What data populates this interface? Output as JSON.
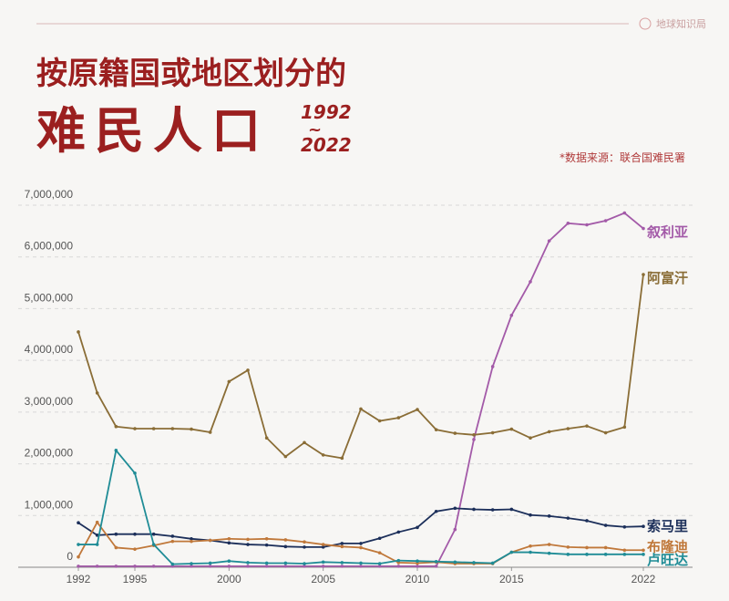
{
  "brand": "地球知识局",
  "chart_data": {
    "type": "line",
    "title_line1": "按原籍国或地区划分的",
    "title_line2": "难民人口",
    "title_year_start": "1992",
    "title_year_sep": "~",
    "title_year_end": "2022",
    "source": "*数据来源：联合国难民署",
    "x": [
      1992,
      1993,
      1994,
      1995,
      1996,
      1997,
      1998,
      1999,
      2000,
      2001,
      2002,
      2003,
      2004,
      2005,
      2006,
      2007,
      2008,
      2009,
      2010,
      2011,
      2012,
      2013,
      2014,
      2015,
      2016,
      2017,
      2018,
      2019,
      2020,
      2021,
      2022
    ],
    "xlim": [
      1992,
      2022
    ],
    "xticks": [
      1992,
      1995,
      2000,
      2005,
      2010,
      2015,
      2022
    ],
    "ylim": [
      0,
      7000000
    ],
    "yticks": [
      0,
      {
        "value": 1000000,
        "label": "1,000,000"
      },
      {
        "value": 2000000,
        "label": "2,000,000"
      },
      {
        "value": 3000000,
        "label": "3,000,000"
      },
      {
        "value": 4000000,
        "label": "4,000,000"
      },
      {
        "value": 5000000,
        "label": "5,000,000"
      },
      {
        "value": 6000000,
        "label": "6,000,000"
      },
      {
        "value": 7000000,
        "label": "7,000,000"
      }
    ],
    "grid": true,
    "series": [
      {
        "name": "叙利亚",
        "color": "#a35aa8",
        "values": [
          20000,
          20000,
          20000,
          20000,
          20000,
          20000,
          20000,
          20000,
          20000,
          20000,
          20000,
          20000,
          20000,
          20000,
          20000,
          20000,
          20000,
          20000,
          20000,
          20000,
          730000,
          2470000,
          3880000,
          4870000,
          5520000,
          6310000,
          6650000,
          6620000,
          6700000,
          6850000,
          6550000
        ]
      },
      {
        "name": "阿富汗",
        "color": "#8a6d36",
        "values": [
          4550000,
          3370000,
          2720000,
          2680000,
          2680000,
          2680000,
          2670000,
          2610000,
          3590000,
          3810000,
          2500000,
          2140000,
          2410000,
          2170000,
          2110000,
          3060000,
          2830000,
          2890000,
          3050000,
          2660000,
          2590000,
          2560000,
          2600000,
          2670000,
          2500000,
          2620000,
          2680000,
          2730000,
          2600000,
          2710000,
          5660000
        ]
      },
      {
        "name": "索马里",
        "color": "#1c2f5a",
        "values": [
          860000,
          620000,
          640000,
          640000,
          640000,
          600000,
          550000,
          520000,
          470000,
          440000,
          430000,
          400000,
          390000,
          390000,
          460000,
          460000,
          560000,
          680000,
          770000,
          1080000,
          1140000,
          1120000,
          1110000,
          1120000,
          1010000,
          990000,
          950000,
          900000,
          810000,
          780000,
          790000
        ]
      },
      {
        "name": "布隆迪",
        "color": "#c0783a",
        "values": [
          200000,
          870000,
          380000,
          350000,
          420000,
          500000,
          500000,
          520000,
          550000,
          540000,
          550000,
          530000,
          490000,
          440000,
          400000,
          380000,
          280000,
          90000,
          80000,
          100000,
          70000,
          70000,
          70000,
          290000,
          410000,
          440000,
          390000,
          380000,
          380000,
          330000,
          330000
        ]
      },
      {
        "name": "卢旺达",
        "color": "#1f8c96",
        "values": [
          440000,
          440000,
          2260000,
          1820000,
          440000,
          60000,
          70000,
          80000,
          120000,
          90000,
          80000,
          80000,
          70000,
          100000,
          90000,
          80000,
          70000,
          130000,
          120000,
          110000,
          100000,
          90000,
          80000,
          290000,
          290000,
          270000,
          250000,
          250000,
          250000,
          250000,
          250000
        ]
      }
    ]
  }
}
